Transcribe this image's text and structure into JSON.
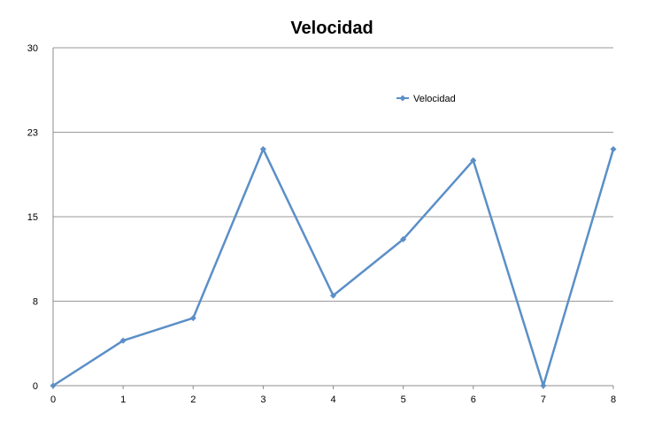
{
  "chart_data": {
    "type": "line",
    "title": "Velocidad",
    "xlabel": "",
    "ylabel": "",
    "x": [
      0,
      1,
      2,
      3,
      4,
      5,
      6,
      7,
      8
    ],
    "x_ticks": [
      "0",
      "1",
      "2",
      "3",
      "4",
      "5",
      "6",
      "7",
      "8"
    ],
    "y_ticks": [
      "0",
      "8",
      "15",
      "23",
      "30"
    ],
    "xlim": [
      0,
      8
    ],
    "ylim": [
      0,
      30
    ],
    "grid": true,
    "legend_position": "top-right",
    "series": [
      {
        "name": "Velocidad",
        "color": "#5b8fc7",
        "values": [
          0,
          4,
          6,
          21,
          8,
          13,
          20,
          0,
          21
        ]
      }
    ]
  }
}
